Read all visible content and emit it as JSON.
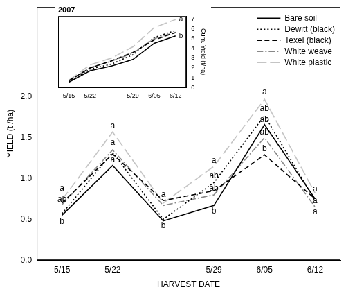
{
  "chart_data": [
    {
      "type": "line",
      "xlabel": "HARVEST DATE",
      "ylabel": "YIELD (t /ha)",
      "categories": [
        "5/15",
        "5/22",
        null,
        "5/29",
        "6/05",
        "6/12"
      ],
      "series": [
        {
          "name": "Bare soil",
          "color": "#000000",
          "line_style": "solid",
          "values": [
            0.55,
            1.16,
            0.48,
            0.67,
            1.66,
            0.75
          ]
        },
        {
          "name": "Dewitt (black)",
          "color": "#000000",
          "line_style": "dotted",
          "values": [
            0.57,
            1.32,
            0.5,
            0.95,
            1.77,
            0.73
          ]
        },
        {
          "name": "Texel (black)",
          "color": "#000000",
          "line_style": "dashed",
          "values": [
            0.7,
            1.3,
            0.73,
            0.85,
            1.29,
            0.75
          ]
        },
        {
          "name": "White weave",
          "color": "#888888",
          "line_style": "dashdot",
          "values": [
            0.68,
            1.35,
            0.67,
            0.8,
            1.5,
            0.65
          ]
        },
        {
          "name": "White plastic",
          "color": "#c4c4c4",
          "line_style": "longdash",
          "values": [
            0.74,
            1.57,
            0.7,
            1.15,
            1.97,
            0.82
          ]
        }
      ],
      "ylim": [
        0,
        3.1
      ],
      "yticks": [
        {
          "value": 0,
          "label": "0.0"
        },
        {
          "value": 0.5,
          "label": "0.5"
        },
        {
          "value": 1,
          "label": "1.0"
        },
        {
          "value": 1.5,
          "label": "1.5"
        },
        {
          "value": 2,
          "label": "2.0"
        }
      ],
      "grid": false,
      "marker": "none",
      "legend": "upper right",
      "annotations": [
        {
          "x": 0,
          "y": 0.88,
          "text": "a"
        },
        {
          "x": 0,
          "y": 0.74,
          "text": "ab"
        },
        {
          "x": 0,
          "y": 0.47,
          "text": "b"
        },
        {
          "x": 1,
          "y": 1.64,
          "text": "a"
        },
        {
          "x": 1,
          "y": 1.44,
          "text": "a"
        },
        {
          "x": 1,
          "y": 1.23,
          "text": "a"
        },
        {
          "x": 2,
          "y": 0.8,
          "text": "a"
        },
        {
          "x": 2,
          "y": 0.42,
          "text": "b"
        },
        {
          "x": 3,
          "y": 1.22,
          "text": "a"
        },
        {
          "x": 3,
          "y": 1.03,
          "text": "ab"
        },
        {
          "x": 3,
          "y": 0.88,
          "text": "ab"
        },
        {
          "x": 3,
          "y": 0.6,
          "text": "b"
        },
        {
          "x": 4,
          "y": 2.06,
          "text": "a"
        },
        {
          "x": 4,
          "y": 1.86,
          "text": "ab"
        },
        {
          "x": 4,
          "y": 1.72,
          "text": "ab"
        },
        {
          "x": 4,
          "y": 1.57,
          "text": "ab"
        },
        {
          "x": 4,
          "y": 1.36,
          "text": "b"
        },
        {
          "x": 5,
          "y": 0.87,
          "text": "a"
        },
        {
          "x": 5,
          "y": 0.73,
          "text": "a"
        },
        {
          "x": 5,
          "y": 0.59,
          "text": "a"
        }
      ]
    },
    {
      "type": "line",
      "title": "2007",
      "y2label": "Cum. Yield (t/ha)",
      "categories": [
        "5/15",
        "5/22",
        null,
        "5/29",
        "6/05",
        "6/12"
      ],
      "series": [
        {
          "name": "Bare soil",
          "color": "#000000",
          "line_style": "solid",
          "axis": "y2",
          "values": [
            0.55,
            1.71,
            2.19,
            2.86,
            4.52,
            5.27
          ]
        },
        {
          "name": "Dewitt (black)",
          "color": "#000000",
          "line_style": "dotted",
          "axis": "y2",
          "values": [
            0.57,
            1.89,
            2.39,
            3.34,
            5.11,
            5.84
          ]
        },
        {
          "name": "Texel (black)",
          "color": "#000000",
          "line_style": "dashed",
          "axis": "y2",
          "values": [
            0.7,
            2.0,
            2.73,
            3.58,
            4.87,
            5.62
          ]
        },
        {
          "name": "White weave",
          "color": "#888888",
          "line_style": "dashdot",
          "axis": "y2",
          "values": [
            0.68,
            2.03,
            2.7,
            3.5,
            5.0,
            5.65
          ]
        },
        {
          "name": "White plastic",
          "color": "#c4c4c4",
          "line_style": "longdash",
          "axis": "y2",
          "values": [
            0.74,
            2.31,
            3.01,
            4.16,
            6.13,
            6.95
          ]
        }
      ],
      "y2lim": [
        0,
        7.3
      ],
      "y2ticks": [
        0,
        1,
        2,
        3,
        4,
        5,
        6,
        7
      ],
      "grid": false,
      "marker": "none",
      "annotations": [
        {
          "x": 5,
          "y": 6.95,
          "text": "a"
        },
        {
          "x": 5,
          "y": 5.27,
          "text": "b"
        }
      ]
    }
  ]
}
